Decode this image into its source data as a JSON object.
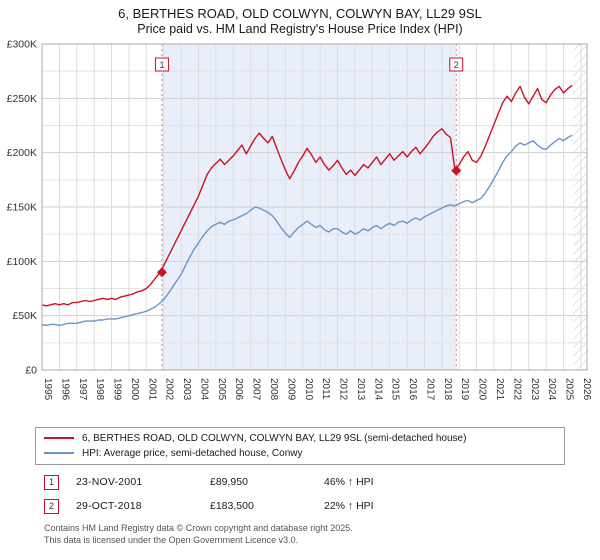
{
  "title": {
    "line1": "6, BERTHES ROAD, OLD COLWYN, COLWYN BAY, LL29 9SL",
    "line2": "Price paid vs. HM Land Registry's House Price Index (HPI)"
  },
  "chart_data": {
    "type": "line",
    "x_start": 1995,
    "x_end": 2026.35,
    "sample_start": 1995,
    "sample_step": 0.25,
    "ylim": [
      0,
      300
    ],
    "grid_step": 25,
    "y_ticks": [
      {
        "v": 0,
        "label": "£0"
      },
      {
        "v": 50,
        "label": "£50K"
      },
      {
        "v": 100,
        "label": "£100K"
      },
      {
        "v": 150,
        "label": "£150K"
      },
      {
        "v": 200,
        "label": "£200K"
      },
      {
        "v": 250,
        "label": "£250K"
      },
      {
        "v": 300,
        "label": "£300K"
      }
    ],
    "x_ticks": [
      1995,
      1996,
      1997,
      1998,
      1999,
      2000,
      2001,
      2002,
      2003,
      2004,
      2005,
      2006,
      2007,
      2008,
      2009,
      2010,
      2011,
      2012,
      2013,
      2014,
      2015,
      2016,
      2017,
      2018,
      2019,
      2020,
      2021,
      2022,
      2023,
      2024,
      2025,
      2026
    ],
    "shaded_region": {
      "from": 2001.9,
      "to": 2018.83,
      "color": "#e9effa"
    },
    "hatch_region": {
      "from": 2025.55,
      "to": 2026.35
    },
    "markers": [
      {
        "label": "1",
        "x": 2001.9,
        "y": 89.95
      },
      {
        "label": "2",
        "x": 2018.83,
        "y": 183.5
      }
    ],
    "marker_color": "#cc1122",
    "dashed_line_color": "#d98080",
    "series": [
      {
        "name": "6, BERTHES ROAD, OLD COLWYN, COLWYN BAY, LL29 9SL (semi-detached house)",
        "color": "#cc1122",
        "values": [
          60,
          59,
          60,
          61,
          60,
          61,
          60,
          62,
          62,
          63,
          64,
          63,
          64,
          65,
          66,
          65,
          66,
          65,
          67,
          68,
          69,
          70,
          72,
          73,
          75,
          79,
          84,
          89,
          96,
          104,
          112,
          120,
          128,
          136,
          144,
          152,
          160,
          170,
          180,
          186,
          190,
          194,
          189,
          193,
          197,
          202,
          207,
          199,
          206,
          213,
          218,
          213,
          209,
          215,
          204,
          194,
          184,
          176,
          183,
          191,
          197,
          204,
          198,
          191,
          196,
          189,
          184,
          188,
          193,
          186,
          180,
          184,
          179,
          184,
          189,
          186,
          191,
          196,
          189,
          194,
          199,
          193,
          197,
          201,
          196,
          201,
          205,
          199,
          204,
          209,
          215,
          219,
          222,
          217,
          214,
          184,
          189,
          196,
          201,
          193,
          191,
          197,
          206,
          216,
          226,
          236,
          246,
          252,
          247,
          255,
          261,
          251,
          245,
          252,
          259,
          249,
          246,
          253,
          258,
          261,
          255,
          259,
          262
        ]
      },
      {
        "name": "HPI: Average price, semi-detached house, Conwy",
        "color": "#6d94c4",
        "values": [
          42,
          41,
          42,
          42,
          41,
          42,
          43,
          43,
          43,
          44,
          45,
          45,
          45,
          46,
          46,
          47,
          47,
          47,
          48,
          49,
          50,
          51,
          52,
          53,
          54,
          56,
          58,
          61,
          65,
          70,
          76,
          82,
          88,
          96,
          104,
          111,
          117,
          123,
          128,
          132,
          134,
          136,
          134,
          137,
          138,
          140,
          142,
          144,
          147,
          150,
          149,
          147,
          145,
          142,
          137,
          131,
          126,
          122,
          127,
          131,
          134,
          137,
          134,
          131,
          133,
          129,
          127,
          130,
          130,
          127,
          125,
          128,
          125,
          127,
          130,
          128,
          131,
          133,
          130,
          133,
          135,
          133,
          136,
          137,
          135,
          138,
          140,
          138,
          141,
          143,
          145,
          147,
          149,
          151,
          152,
          151,
          153,
          155,
          156,
          154,
          156,
          158,
          163,
          169,
          176,
          183,
          191,
          197,
          201,
          206,
          209,
          207,
          209,
          211,
          207,
          204,
          203,
          207,
          210,
          213,
          211,
          214,
          216
        ]
      }
    ]
  },
  "legend": {
    "items": [
      {
        "label": "6, BERTHES ROAD, OLD COLWYN, COLWYN BAY, LL29 9SL (semi-detached house)",
        "color": "#cc1122"
      },
      {
        "label": "HPI: Average price, semi-detached house, Conwy",
        "color": "#6d94c4"
      }
    ]
  },
  "transactions": [
    {
      "num": "1",
      "date": "23-NOV-2001",
      "price": "£89,950",
      "hpi": "46% ↑ HPI"
    },
    {
      "num": "2",
      "date": "29-OCT-2018",
      "price": "£183,500",
      "hpi": "22% ↑ HPI"
    }
  ],
  "footer": {
    "line1": "Contains HM Land Registry data © Crown copyright and database right 2025.",
    "line2": "This data is licensed under the Open Government Licence v3.0."
  }
}
